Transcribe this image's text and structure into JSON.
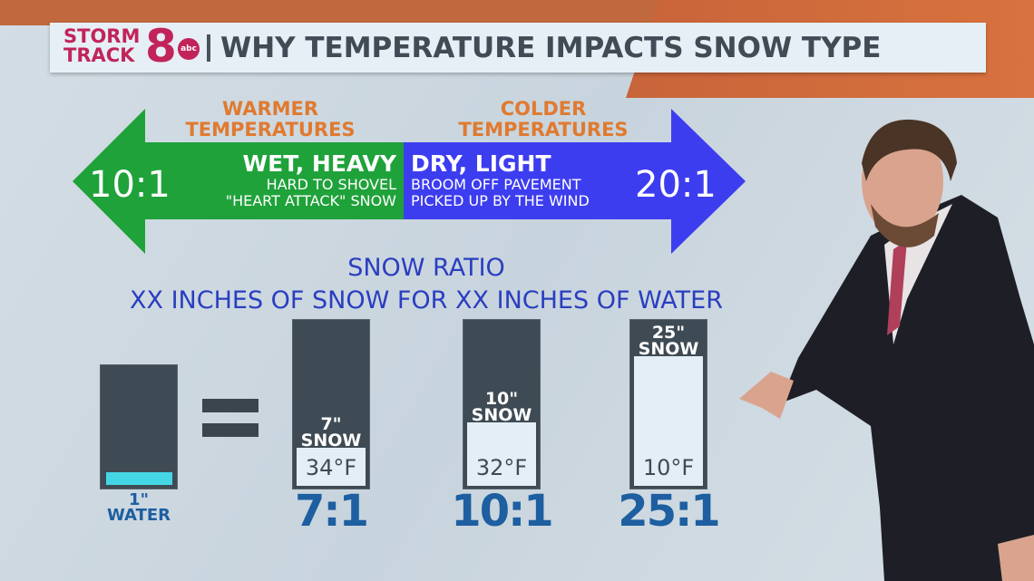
{
  "header": {
    "logo_line1": "STORM",
    "logo_line2": "TRACK",
    "logo_number": "8",
    "logo_network": "abc",
    "title": "WHY TEMPERATURE IMPACTS SNOW TYPE"
  },
  "arrow": {
    "warm": {
      "label_line1": "WARMER",
      "label_line2": "TEMPERATURES",
      "ratio": "10:1",
      "heading": "WET, HEAVY",
      "line1": "HARD TO SHOVEL",
      "line2": "\"HEART ATTACK\" SNOW",
      "color": "#1fa23a"
    },
    "cold": {
      "label_line1": "COLDER",
      "label_line2": "TEMPERATURES",
      "ratio": "20:1",
      "heading": "DRY, LIGHT",
      "line1": "BROOM OFF PAVEMENT",
      "line2": "PICKED UP BY THE WIND",
      "color": "#3d3df0"
    }
  },
  "ratio_section": {
    "title": "SNOW RATIO",
    "subtitle": "XX INCHES OF SNOW FOR XX INCHES OF WATER"
  },
  "water": {
    "amount": "1\"",
    "label": "WATER",
    "color": "#45d6e6"
  },
  "columns": [
    {
      "amount": "7\"",
      "label": "SNOW",
      "temp": "34°F",
      "ratio": "7:1"
    },
    {
      "amount": "10\"",
      "label": "SNOW",
      "temp": "32°F",
      "ratio": "10:1"
    },
    {
      "amount": "25\"",
      "label": "SNOW",
      "temp": "10°F",
      "ratio": "25:1"
    }
  ]
}
